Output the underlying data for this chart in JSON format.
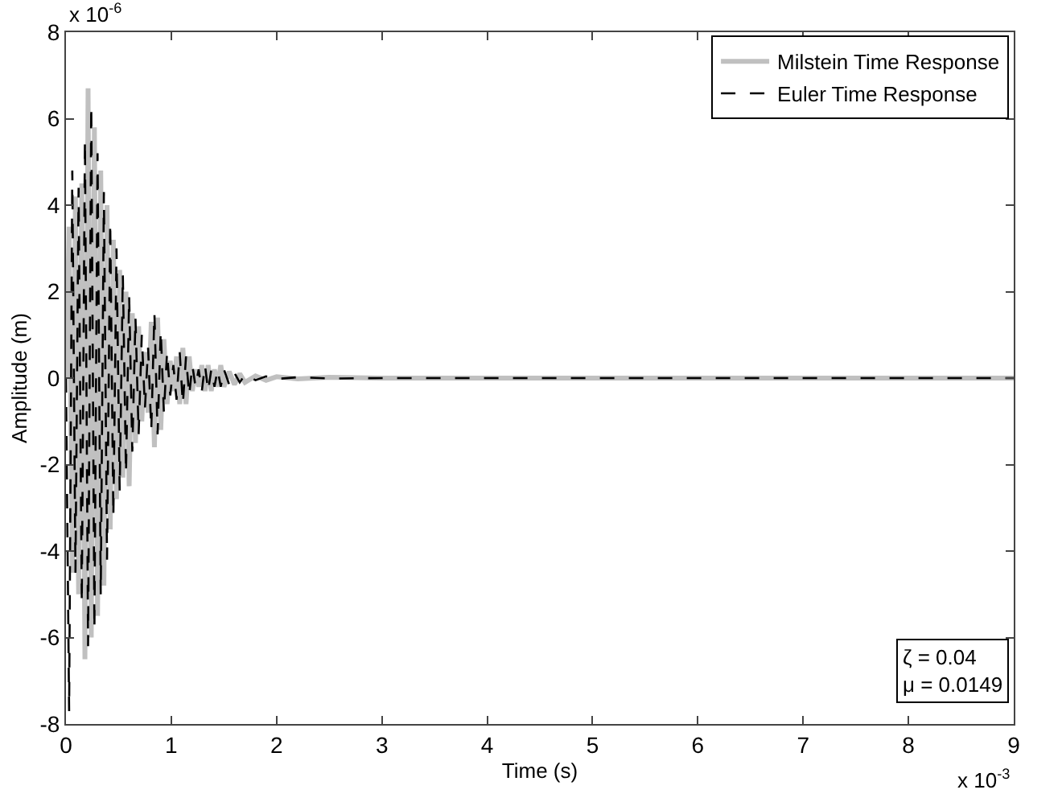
{
  "chart_data": {
    "type": "line",
    "xlabel": "Time (s)",
    "ylabel": "Amplitude (m)",
    "xlim": [
      0,
      9
    ],
    "xticks": [
      0,
      1,
      2,
      3,
      4,
      5,
      6,
      7,
      8,
      9
    ],
    "ylim": [
      -8,
      8
    ],
    "yticks": [
      -8,
      -6,
      -4,
      -2,
      0,
      2,
      4,
      6,
      8
    ],
    "legend": "top right",
    "marker": "none",
    "annotations": [
      "x 10$^{-6}$",
      "x 10$^{-3}$",
      "ζ = 0.04\nμ = 0.0149"
    ],
    "series": [
      {
        "name": "Milstein Time Response",
        "color": "#c0c0c0",
        "line_style": "solid",
        "x": [
          0,
          0.03,
          0.06,
          0.09,
          0.12,
          0.15,
          0.18,
          0.21,
          0.24,
          0.27,
          0.3,
          0.33,
          0.36,
          0.39,
          0.42,
          0.45,
          0.48,
          0.51,
          0.54,
          0.57,
          0.6,
          0.63,
          0.66,
          0.69,
          0.72,
          0.75,
          0.78,
          0.81,
          0.84,
          0.87,
          0.9,
          0.93,
          0.96,
          0.99,
          1.02,
          1.05,
          1.08,
          1.11,
          1.14,
          1.17,
          1.2,
          1.23,
          1.26,
          1.29,
          1.32,
          1.35,
          1.38,
          1.41,
          1.44,
          1.47,
          1.5,
          1.55,
          1.6,
          1.65,
          1.7,
          1.8,
          1.9,
          2.0,
          2.2,
          2.5,
          3.0,
          9
        ],
        "values": [
          0,
          3.5,
          -4.5,
          4.2,
          -5,
          4.5,
          -6.5,
          6.7,
          -6,
          5.8,
          -5.5,
          4.8,
          -4.8,
          4,
          -3.5,
          3.2,
          -2.8,
          2.5,
          -2.3,
          2,
          -2.5,
          1.5,
          -1.5,
          1.2,
          -1,
          0.6,
          -0.8,
          1.3,
          -1.6,
          1.4,
          -1.2,
          0.9,
          -0.6,
          0.4,
          -0.3,
          0.5,
          -0.6,
          0.7,
          -0.6,
          0.5,
          -0.3,
          0.2,
          -0.2,
          0.3,
          -0.3,
          0.3,
          -0.3,
          0.2,
          -0.2,
          0.3,
          -0.2,
          0.15,
          -0.15,
          0.1,
          -0.1,
          0.05,
          -0.05,
          0.03,
          -0.02,
          0.02,
          0,
          0
        ]
      },
      {
        "name": "Euler Time Response",
        "color": "#000000",
        "line_style": "dashed",
        "x": [
          0,
          0.03,
          0.06,
          0.09,
          0.12,
          0.15,
          0.18,
          0.21,
          0.24,
          0.27,
          0.3,
          0.33,
          0.36,
          0.39,
          0.42,
          0.45,
          0.48,
          0.51,
          0.54,
          0.57,
          0.6,
          0.63,
          0.66,
          0.69,
          0.72,
          0.75,
          0.78,
          0.81,
          0.84,
          0.87,
          0.9,
          0.93,
          0.96,
          0.99,
          1.02,
          1.05,
          1.08,
          1.11,
          1.14,
          1.17,
          1.2,
          1.23,
          1.26,
          1.29,
          1.32,
          1.35,
          1.38,
          1.41,
          1.44,
          1.47,
          1.5,
          1.55,
          1.6,
          1.65,
          1.7,
          1.8,
          1.9,
          2.0,
          2.2,
          2.5,
          3.0,
          9
        ],
        "values": [
          0,
          -7.7,
          4.8,
          -4.5,
          4.4,
          -5.2,
          5.5,
          -6.2,
          6.3,
          -5.8,
          5.2,
          -5,
          4.3,
          -4.2,
          3.6,
          -3.2,
          3,
          -2.6,
          2.4,
          -2.2,
          1.9,
          -1.7,
          1.4,
          -1.3,
          1,
          -0.7,
          0.7,
          -1.2,
          1.5,
          -1.3,
          1.1,
          -0.8,
          0.6,
          -0.4,
          0.3,
          -0.5,
          0.6,
          -0.6,
          0.5,
          -0.4,
          0.3,
          -0.2,
          0.2,
          -0.3,
          0.3,
          -0.3,
          0.2,
          -0.2,
          0.2,
          -0.2,
          0.2,
          -0.15,
          0.12,
          -0.1,
          0.08,
          -0.05,
          0.04,
          -0.02,
          0.02,
          -0.01,
          0,
          0
        ]
      }
    ]
  }
}
